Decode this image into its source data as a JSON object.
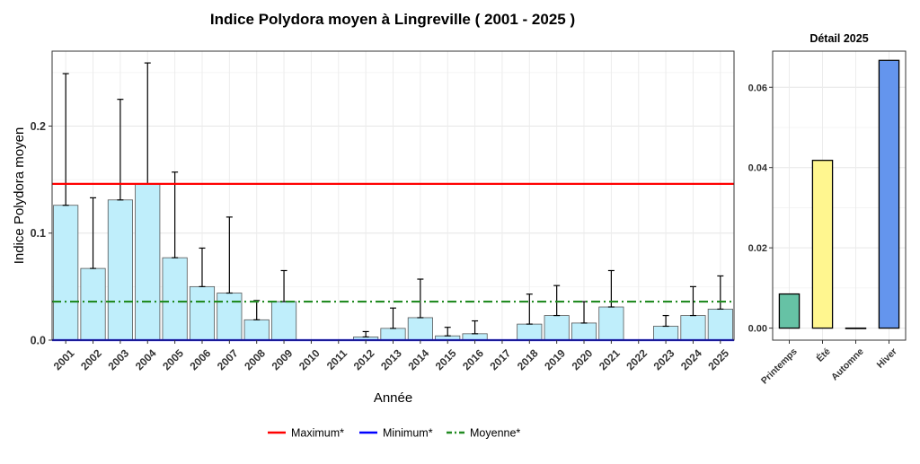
{
  "main_title": "Indice Polydora moyen à Lingreville ( 2001 - 2025 )",
  "legend": {
    "position": "bottom",
    "items": [
      {
        "label": "Maximum*",
        "color": "#ff0000",
        "style": "solid"
      },
      {
        "label": "Minimum*",
        "color": "#0000ff",
        "style": "solid"
      },
      {
        "label": "Moyenne*",
        "color": "#228b22",
        "style": "dotdash"
      }
    ]
  },
  "chart_data": [
    {
      "type": "bar",
      "xlabel": "Année",
      "ylabel": "Indice Polydora moyen",
      "ylim": [
        0,
        0.27
      ],
      "yticks": [
        0.0,
        0.1,
        0.2
      ],
      "ytick_labels": [
        "0.0",
        "0.1",
        "0.2"
      ],
      "grid": true,
      "bar_color": "#bfeefb",
      "categories": [
        "2001",
        "2002",
        "2003",
        "2004",
        "2005",
        "2006",
        "2007",
        "2008",
        "2009",
        "2010",
        "2011",
        "2012",
        "2013",
        "2014",
        "2015",
        "2016",
        "2017",
        "2018",
        "2019",
        "2020",
        "2021",
        "2022",
        "2023",
        "2024",
        "2025"
      ],
      "values": [
        0.126,
        0.067,
        0.131,
        0.146,
        0.077,
        0.05,
        0.044,
        0.019,
        0.036,
        0,
        0,
        0.003,
        0.011,
        0.021,
        0.004,
        0.006,
        0,
        0.015,
        0.023,
        0.016,
        0.031,
        0,
        0.013,
        0.023,
        0.029
      ],
      "error_upper": [
        0.249,
        0.133,
        0.225,
        0.259,
        0.157,
        0.086,
        0.115,
        0.037,
        0.065,
        null,
        null,
        0.008,
        0.03,
        0.057,
        0.012,
        0.018,
        null,
        0.043,
        0.051,
        0.036,
        0.065,
        null,
        0.023,
        0.05,
        0.06
      ],
      "reference_lines": [
        {
          "label": "Maximum*",
          "value": 0.146,
          "color": "#ff0000",
          "style": "solid"
        },
        {
          "label": "Minimum*",
          "value": 0.0,
          "color": "#0000ff",
          "style": "solid"
        },
        {
          "label": "Moyenne*",
          "value": 0.036,
          "color": "#228b22",
          "style": "dotdash"
        }
      ]
    },
    {
      "type": "bar",
      "title": "Détail 2025",
      "ylim": [
        -0.003,
        0.069
      ],
      "yticks": [
        0.0,
        0.02,
        0.04,
        0.06
      ],
      "ytick_labels": [
        "0.00",
        "0.02",
        "0.04",
        "0.06"
      ],
      "grid": true,
      "categories": [
        "Printemps",
        "Été",
        "Automne",
        "Hiver"
      ],
      "values": [
        0.0085,
        0.0418,
        0.0,
        0.0667
      ],
      "colors": [
        "#66c2a5",
        "#fff68f",
        "#fff68f",
        "#6495ed"
      ]
    }
  ]
}
